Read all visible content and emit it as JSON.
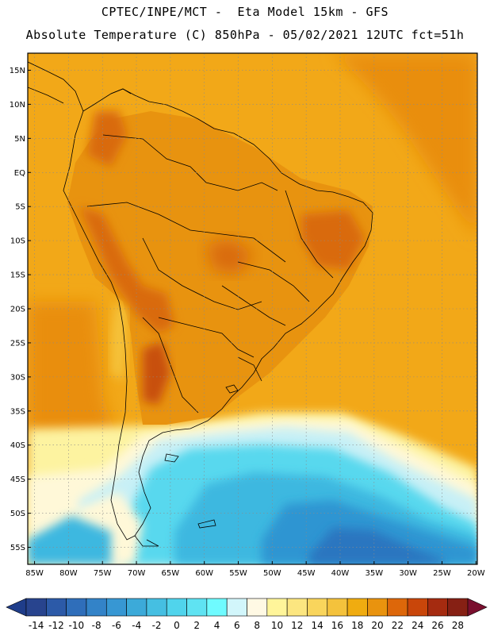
{
  "header": {
    "line1": "CPTEC/INPE/MCT -  Eta Model 15km - GFS",
    "line2": "Absolute Temperature (C) 850hPa - 05/02/2021 12UTC fct=51h"
  },
  "map": {
    "lat_ticks": [
      {
        "value": 15,
        "label": "15N"
      },
      {
        "value": 10,
        "label": "10N"
      },
      {
        "value": 5,
        "label": "5N"
      },
      {
        "value": 0,
        "label": "EQ"
      },
      {
        "value": -5,
        "label": "5S"
      },
      {
        "value": -10,
        "label": "10S"
      },
      {
        "value": -15,
        "label": "15S"
      },
      {
        "value": -20,
        "label": "20S"
      },
      {
        "value": -25,
        "label": "25S"
      },
      {
        "value": -30,
        "label": "30S"
      },
      {
        "value": -35,
        "label": "35S"
      },
      {
        "value": -40,
        "label": "40S"
      },
      {
        "value": -45,
        "label": "45S"
      },
      {
        "value": -50,
        "label": "50S"
      },
      {
        "value": -55,
        "label": "55S"
      }
    ],
    "lon_ticks": [
      {
        "value": -85,
        "label": "85W"
      },
      {
        "value": -80,
        "label": "80W"
      },
      {
        "value": -75,
        "label": "75W"
      },
      {
        "value": -70,
        "label": "70W"
      },
      {
        "value": -65,
        "label": "65W"
      },
      {
        "value": -60,
        "label": "60W"
      },
      {
        "value": -55,
        "label": "55W"
      },
      {
        "value": -50,
        "label": "50W"
      },
      {
        "value": -45,
        "label": "45W"
      },
      {
        "value": -40,
        "label": "40W"
      },
      {
        "value": -35,
        "label": "35W"
      },
      {
        "value": -30,
        "label": "30W"
      },
      {
        "value": -25,
        "label": "25W"
      },
      {
        "value": -20,
        "label": "20W"
      }
    ],
    "field_colors": {
      "ocean_warm": "#F2A818",
      "ocean_hot": "#E98E10",
      "land_base": "#E8930F",
      "land_hot": "#D96A0A",
      "land_hotter": "#C8500A",
      "andes_cool": "#F5C23A",
      "cool_band_1": "#FDF3A0",
      "cool_band_2": "#FFF8D8",
      "cool_band_3": "#C8F0F6",
      "cold_1": "#58D8EE",
      "cold_2": "#3CB8E0",
      "cold_3": "#2F95D2",
      "cold_4": "#2C76C0",
      "cold_5": "#2E5FAE"
    }
  },
  "colorbar": {
    "labels": [
      "-14",
      "-12",
      "-10",
      "-8",
      "-6",
      "-4",
      "-2",
      "0",
      "2",
      "4",
      "6",
      "8",
      "10",
      "12",
      "14",
      "16",
      "18",
      "20",
      "22",
      "24",
      "26",
      "28"
    ],
    "colors": [
      "#28448E",
      "#2C5AA8",
      "#2F6EBA",
      "#3383C8",
      "#3797D3",
      "#3CAAD9",
      "#45BFE2",
      "#50D4EC",
      "#5FE3F2",
      "#6FFBFF",
      "#D2F6FB",
      "#FFF9E4",
      "#FFF59A",
      "#FCE680",
      "#F9D55C",
      "#F4C23C",
      "#F0AC10",
      "#E9930E",
      "#DD670A",
      "#C9460A",
      "#A52B10",
      "#862014"
    ],
    "min_color": "#1F3D8A",
    "max_color": "#7A0F2E"
  }
}
